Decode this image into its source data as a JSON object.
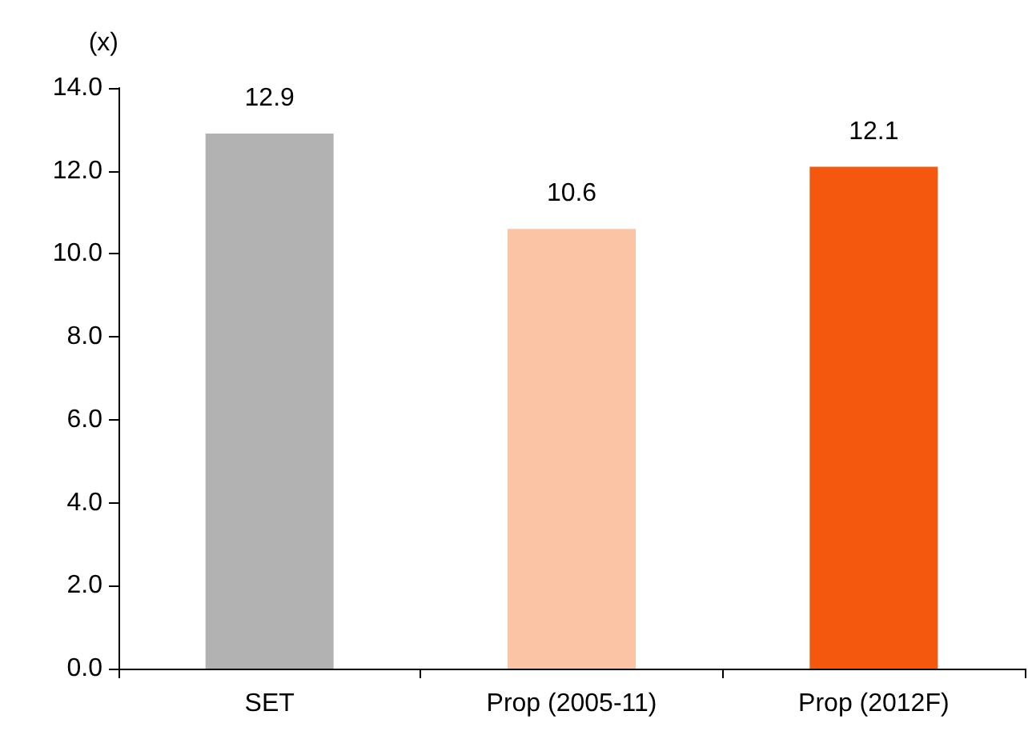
{
  "chart_data": {
    "type": "bar",
    "ylabel": "(x)",
    "categories": [
      "SET",
      "Prop (2005-11)",
      "Prop (2012F)"
    ],
    "values": [
      12.9,
      10.6,
      12.1
    ],
    "colors": [
      "#b2b2b2",
      "#fbc4a4",
      "#f4580f"
    ],
    "ylim": [
      0,
      14
    ],
    "yticks": [
      {
        "value": 0,
        "label": "0.0"
      },
      {
        "value": 2,
        "label": "2.0"
      },
      {
        "value": 4,
        "label": "4.0"
      },
      {
        "value": 6,
        "label": "6.0"
      },
      {
        "value": 8,
        "label": "8.0"
      },
      {
        "value": 10,
        "label": "10.0"
      },
      {
        "value": 12,
        "label": "12.0"
      },
      {
        "value": 14,
        "label": "14.0"
      }
    ],
    "data_labels": true
  }
}
